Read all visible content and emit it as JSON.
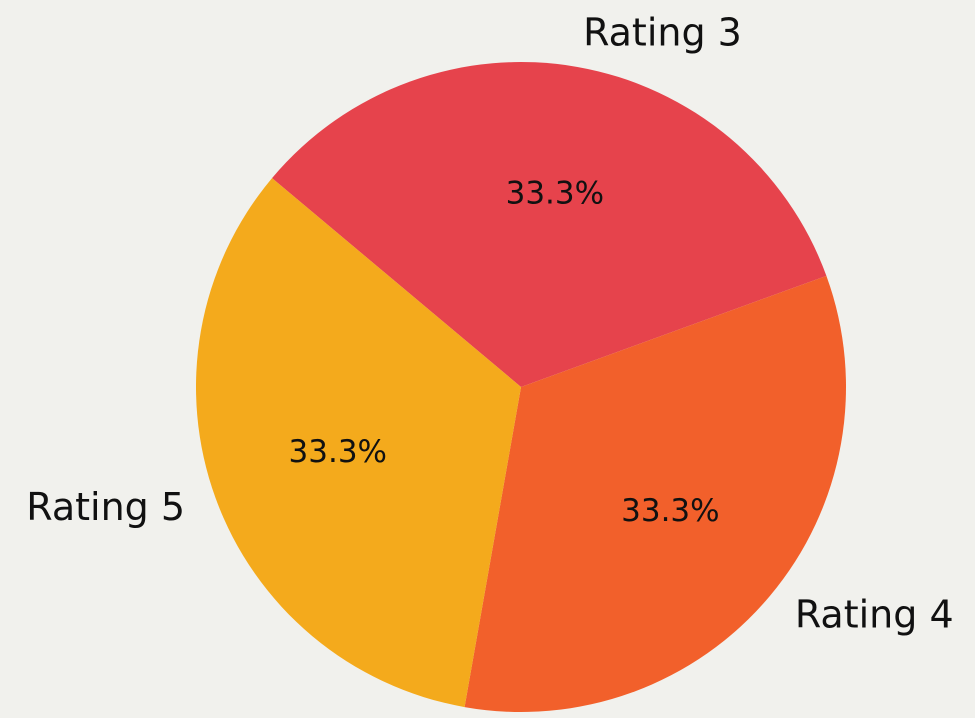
{
  "chart_data": {
    "type": "pie",
    "categories": [
      "Rating 3",
      "Rating 4",
      "Rating 5"
    ],
    "values": [
      33.3,
      33.3,
      33.3
    ],
    "value_labels": [
      "33.3%",
      "33.3%",
      "33.3%"
    ],
    "colors": [
      "#e6434c",
      "#f2602b",
      "#f4aa1c"
    ]
  }
}
